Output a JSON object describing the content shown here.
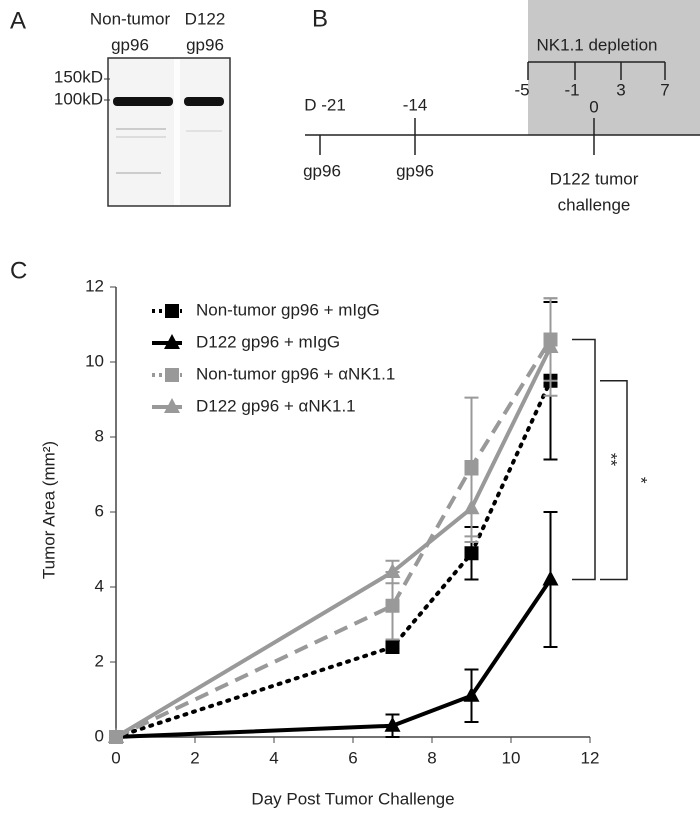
{
  "panel_a": {
    "label": "A",
    "lanes": [
      [
        "Non-tumor",
        "gp96"
      ],
      [
        "D122",
        "gp96"
      ]
    ],
    "markers": [
      "150kD",
      "100kD"
    ]
  },
  "panel_b": {
    "label": "B",
    "depletion": "NK1.1 depletion",
    "depletion_days": [
      "-5",
      "-1",
      "3",
      "7"
    ],
    "events": [
      {
        "day": "D -21",
        "text": [
          "gp96"
        ]
      },
      {
        "day": "-14",
        "text": [
          "gp96"
        ]
      },
      {
        "day": "0",
        "text": [
          "D122 tumor",
          "challenge"
        ]
      }
    ]
  },
  "chart_data": {
    "type": "line",
    "panel_label": "C",
    "x_label": "Day Post Tumor Challenge",
    "y_label": "Tumor Area (mm²)",
    "x": [
      0,
      7,
      9,
      11
    ],
    "xlim": [
      0,
      12
    ],
    "xticks": [
      0,
      2,
      4,
      6,
      8,
      10,
      12
    ],
    "ylim": [
      0,
      12
    ],
    "yticks": [
      0,
      2,
      4,
      6,
      8,
      10,
      12
    ],
    "series": [
      {
        "name": "Non-tumor gp96 + mIgG",
        "color": "#000000",
        "dash": "dotted",
        "marker": "square",
        "values": [
          0,
          2.4,
          4.9,
          9.5
        ],
        "errors": [
          0,
          0.15,
          0.7,
          2.1
        ]
      },
      {
        "name": "D122 gp96 + mIgG",
        "color": "#000000",
        "dash": "solid",
        "marker": "triangle",
        "values": [
          0,
          0.3,
          1.1,
          4.2
        ],
        "errors": [
          0,
          0.3,
          0.7,
          1.8
        ]
      },
      {
        "name": "Non-tumor gp96 + αNK1.1",
        "color": "#999999",
        "dash": "dashed",
        "marker": "square",
        "values": [
          0,
          3.5,
          7.2,
          10.6
        ],
        "errors": [
          0,
          0.9,
          1.85,
          1.1
        ]
      },
      {
        "name": "D122 gp96 + αNK1.1",
        "color": "#999999",
        "dash": "solid",
        "marker": "triangle",
        "values": [
          0,
          4.4,
          6.1,
          10.4
        ],
        "errors": [
          0,
          0.3,
          0.9,
          1.3
        ]
      }
    ],
    "annotations": [
      "**",
      "*"
    ]
  }
}
